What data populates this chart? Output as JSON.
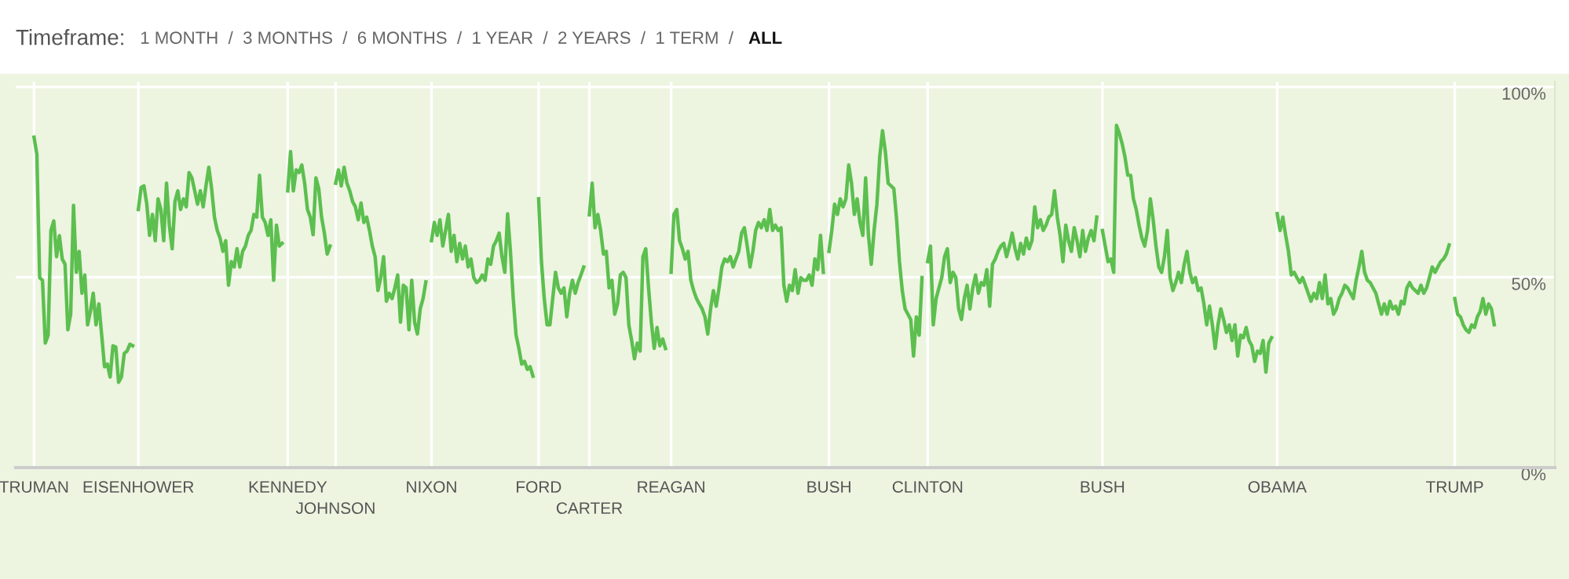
{
  "chart_data": {
    "type": "line",
    "annotations": [
      "Timeframe:",
      "1 MONTH  /  3 MONTHS  /  6 MONTHS  /  1 YEAR  /  2 YEARS  /  1 TERM  /",
      "ALL"
    ],
    "ylim": [
      0,
      101.4
    ],
    "yticks": [
      {
        "value": 0,
        "label": "0%"
      },
      {
        "value": 50,
        "label": "50%"
      },
      {
        "value": 100,
        "label": "100%"
      }
    ],
    "grid": true,
    "marker": "none",
    "line_style": "solid",
    "categories": [
      null,
      null,
      null,
      null,
      null,
      null,
      "TRUMAN",
      null,
      null,
      null,
      null,
      null,
      null,
      null,
      null,
      null,
      null,
      null,
      null,
      null,
      null,
      null,
      null,
      null,
      null,
      null,
      null,
      null,
      null,
      null,
      null,
      null,
      null,
      null,
      null,
      null,
      null,
      null,
      null,
      null,
      null,
      null,
      null,
      "EISENHOWER",
      null,
      null,
      null,
      null,
      null,
      null,
      null,
      null,
      null,
      null,
      null,
      null,
      null,
      null,
      null,
      null,
      null,
      null,
      null,
      null,
      null,
      null,
      null,
      null,
      null,
      null,
      null,
      null,
      null,
      null,
      null,
      null,
      null,
      null,
      null,
      null,
      null,
      null,
      null,
      null,
      null,
      null,
      null,
      null,
      null,
      null,
      null,
      null,
      null,
      null,
      null,
      null,
      "KENNEDY",
      null,
      null,
      null,
      null,
      null,
      null,
      null,
      null,
      null,
      null,
      null,
      null,
      null,
      null,
      null,
      null,
      "JOHNSON",
      null,
      null,
      null,
      null,
      null,
      null,
      null,
      null,
      null,
      null,
      null,
      null,
      null,
      null,
      null,
      null,
      null,
      null,
      null,
      null,
      null,
      null,
      null,
      null,
      null,
      null,
      null,
      null,
      null,
      null,
      null,
      null,
      null,
      "NIXON",
      null,
      null,
      null,
      null,
      null,
      null,
      null,
      null,
      null,
      null,
      null,
      null,
      null,
      null,
      null,
      null,
      null,
      null,
      null,
      null,
      null,
      null,
      null,
      null,
      null,
      null,
      null,
      null,
      null,
      null,
      null,
      null,
      null,
      null,
      null,
      null,
      null,
      "FORD",
      null,
      null,
      null,
      null,
      null,
      null,
      null,
      null,
      null,
      null,
      null,
      null,
      null,
      null,
      null,
      null,
      null,
      "CARTER",
      null,
      null,
      null,
      null,
      null,
      null,
      null,
      null,
      null,
      null,
      null,
      null,
      null,
      null,
      null,
      null,
      null,
      null,
      null,
      null,
      null,
      null,
      null,
      null,
      null,
      null,
      null,
      null,
      "REAGAN",
      null,
      null,
      null,
      null,
      null,
      null,
      null,
      null,
      null,
      null,
      null,
      null,
      null,
      null,
      null,
      null,
      null,
      null,
      null,
      null,
      null,
      null,
      null,
      null,
      null,
      null,
      null,
      null,
      null,
      null,
      null,
      null,
      null,
      null,
      null,
      null,
      null,
      null,
      null,
      null,
      null,
      null,
      null,
      null,
      null,
      null,
      null,
      null,
      null,
      null,
      null,
      null,
      null,
      null,
      null,
      "BUSH",
      null,
      null,
      null,
      null,
      null,
      null,
      null,
      null,
      null,
      null,
      null,
      null,
      null,
      null,
      null,
      null,
      null,
      null,
      null,
      null,
      null,
      null,
      null,
      null,
      null,
      null,
      null,
      null,
      null,
      null,
      null,
      null,
      null,
      null,
      "CLINTON",
      null,
      null,
      null,
      null,
      null,
      null,
      null,
      null,
      null,
      null,
      null,
      null,
      null,
      null,
      null,
      null,
      null,
      null,
      null,
      null,
      null,
      null,
      null,
      null,
      null,
      null,
      null,
      null,
      null,
      null,
      null,
      null,
      null,
      null,
      null,
      null,
      null,
      null,
      null,
      null,
      null,
      null,
      null,
      null,
      null,
      null,
      null,
      null,
      null,
      null,
      null,
      null,
      null,
      null,
      null,
      null,
      null,
      null,
      null,
      null,
      null,
      "BUSH",
      null,
      null,
      null,
      null,
      null,
      null,
      null,
      null,
      null,
      null,
      null,
      null,
      null,
      null,
      null,
      null,
      null,
      null,
      null,
      null,
      null,
      null,
      null,
      null,
      null,
      null,
      null,
      null,
      null,
      null,
      null,
      null,
      null,
      null,
      null,
      null,
      null,
      null,
      null,
      null,
      null,
      null,
      null,
      null,
      null,
      null,
      null,
      null,
      null,
      null,
      null,
      null,
      null,
      null,
      null,
      null,
      null,
      null,
      null,
      null,
      null,
      "OBAMA",
      null,
      null,
      null,
      null,
      null,
      null,
      null,
      null,
      null,
      null,
      null,
      null,
      null,
      null,
      null,
      null,
      null,
      null,
      null,
      null,
      null,
      null,
      null,
      null,
      null,
      null,
      null,
      null,
      null,
      null,
      null,
      null,
      null,
      null,
      null,
      null,
      null,
      null,
      null,
      null,
      null,
      null,
      null,
      null,
      null,
      null,
      null,
      null,
      null,
      null,
      null,
      null,
      null,
      null,
      null,
      null,
      null,
      null,
      null,
      null,
      null,
      null,
      "TRUMP",
      null,
      null,
      null,
      null,
      null,
      null,
      null,
      null,
      null,
      null,
      null,
      null,
      null,
      null,
      null,
      null,
      null,
      null,
      null,
      null,
      null,
      null,
      null,
      null,
      null,
      null,
      null,
      null,
      null,
      null,
      null,
      null,
      null,
      null,
      null
    ],
    "series": [
      {
        "color": "#5cbf4f",
        "values": [
          null,
          null,
          null,
          null,
          null,
          null,
          86.8,
          82.3,
          49.9,
          49.2,
          32.7,
          34.8,
          62.3,
          64.8,
          55.4,
          60.9,
          54.8,
          53.4,
          36.2,
          40.3,
          68.9,
          51.3,
          56.8,
          45.8,
          50.6,
          37.5,
          41.0,
          45.8,
          37.5,
          43.0,
          34.8,
          26.5,
          27.2,
          23.8,
          32.0,
          31.7,
          22.4,
          23.8,
          30.0,
          30.6,
          32.4,
          32.0,
          null,
          67.8,
          73.6,
          74.0,
          69.2,
          61.0,
          66.5,
          59.6,
          70.6,
          67.8,
          59.6,
          74.7,
          63.7,
          57.5,
          69.9,
          72.7,
          67.8,
          70.6,
          68.5,
          77.5,
          76.1,
          72.7,
          69.2,
          72.7,
          68.5,
          74.0,
          78.9,
          73.3,
          65.8,
          62.3,
          60.3,
          56.8,
          59.6,
          47.9,
          54.1,
          52.7,
          57.5,
          52.7,
          56.8,
          58.2,
          61.0,
          62.3,
          66.5,
          65.8,
          76.8,
          65.8,
          64.4,
          61.0,
          65.1,
          49.2,
          63.7,
          58.2,
          58.9,
          null,
          72.7,
          83.0,
          72.7,
          78.2,
          77.5,
          79.5,
          74.7,
          67.8,
          65.8,
          61.2,
          76.1,
          73.3,
          65.8,
          61.6,
          56.1,
          58.2,
          null,
          74.7,
          78.2,
          74.0,
          78.9,
          74.7,
          72.7,
          69.9,
          68.5,
          65.1,
          69.5,
          64.4,
          65.8,
          62.3,
          58.2,
          55.4,
          46.5,
          49.9,
          55.4,
          43.7,
          45.8,
          44.4,
          47.2,
          50.6,
          38.2,
          47.9,
          47.2,
          36.2,
          49.2,
          38.2,
          35.1,
          41.7,
          44.4,
          48.8,
          null,
          59.6,
          64.4,
          61.0,
          65.1,
          58.2,
          62.3,
          66.5,
          56.8,
          61.0,
          54.1,
          58.9,
          54.8,
          58.2,
          52.7,
          54.8,
          49.9,
          48.6,
          49.2,
          50.6,
          49.2,
          54.8,
          53.4,
          58.2,
          59.6,
          61.6,
          55.4,
          51.3,
          66.7,
          56.8,
          44.4,
          34.8,
          31.3,
          27.2,
          27.9,
          25.8,
          26.5,
          24.0,
          null,
          70.6,
          54.1,
          44.4,
          37.5,
          37.5,
          44.4,
          51.3,
          47.2,
          45.8,
          47.2,
          39.6,
          45.8,
          49.2,
          45.8,
          48.6,
          50.6,
          52.7,
          null,
          66.4,
          74.7,
          63.0,
          66.5,
          62.3,
          56.1,
          56.8,
          47.2,
          49.2,
          40.3,
          43.0,
          50.6,
          51.3,
          49.9,
          37.5,
          33.4,
          28.6,
          32.7,
          30.6,
          55.4,
          57.5,
          47.2,
          38.2,
          31.3,
          36.8,
          32.0,
          33.8,
          31.3,
          null,
          51.3,
          66.5,
          67.8,
          59.6,
          57.5,
          54.8,
          56.8,
          49.2,
          46.5,
          44.4,
          43.0,
          41.7,
          39.6,
          35.1,
          41.7,
          46.5,
          42.4,
          47.2,
          52.7,
          54.8,
          54.1,
          55.4,
          52.7,
          54.8,
          56.8,
          61.6,
          63.0,
          58.2,
          52.7,
          56.8,
          62.3,
          64.4,
          63.0,
          65.1,
          62.3,
          67.8,
          62.3,
          63.7,
          62.3,
          63.0,
          47.9,
          43.7,
          47.9,
          46.5,
          52.0,
          45.8,
          49.9,
          49.2,
          49.2,
          50.6,
          47.9,
          54.8,
          52.0,
          61.0,
          51.3,
          null,
          56.8,
          62.3,
          69.2,
          66.5,
          70.6,
          68.5,
          70.6,
          79.5,
          74.7,
          66.5,
          70.6,
          64.4,
          61.0,
          76.1,
          61.0,
          53.4,
          62.3,
          69.2,
          81.6,
          88.5,
          83.0,
          74.7,
          74.0,
          73.3,
          65.1,
          54.1,
          46.5,
          41.7,
          40.3,
          38.9,
          29.3,
          39.6,
          34.8,
          49.9,
          null,
          54.1,
          58.2,
          37.5,
          44.4,
          47.2,
          49.9,
          55.4,
          57.5,
          48.6,
          51.3,
          49.9,
          41.7,
          38.9,
          44.4,
          47.9,
          41.7,
          47.2,
          50.6,
          45.8,
          48.6,
          47.9,
          52.0,
          42.4,
          53.4,
          54.8,
          56.8,
          58.2,
          58.9,
          55.4,
          58.2,
          61.6,
          57.5,
          54.8,
          58.9,
          56.1,
          60.3,
          57.5,
          59.6,
          68.5,
          63.0,
          65.1,
          62.3,
          63.7,
          65.8,
          66.5,
          72.7,
          65.8,
          61.0,
          54.1,
          63.7,
          59.6,
          56.8,
          63.0,
          59.6,
          55.4,
          62.3,
          56.8,
          60.3,
          62.3,
          59.6,
          65.8,
          null,
          62.3,
          58.2,
          54.1,
          54.8,
          51.3,
          89.9,
          87.8,
          85.1,
          81.6,
          76.8,
          76.8,
          70.6,
          67.8,
          63.7,
          60.3,
          58.2,
          62.3,
          70.6,
          65.1,
          58.2,
          52.7,
          51.3,
          55.4,
          62.3,
          49.9,
          46.5,
          48.6,
          51.3,
          48.6,
          53.4,
          56.8,
          51.3,
          48.6,
          49.9,
          46.5,
          47.2,
          43.0,
          37.5,
          42.4,
          37.5,
          31.3,
          37.5,
          41.7,
          38.9,
          35.5,
          37.5,
          33.4,
          37.5,
          29.3,
          34.8,
          34.1,
          36.8,
          33.4,
          32.0,
          27.9,
          30.6,
          30.0,
          33.4,
          25.1,
          32.7,
          34.1,
          null,
          66.7,
          62.3,
          65.8,
          61.0,
          56.8,
          50.6,
          51.3,
          49.9,
          48.6,
          49.9,
          47.9,
          45.8,
          43.7,
          45.8,
          44.4,
          48.6,
          44.4,
          50.6,
          43.0,
          44.4,
          40.3,
          41.7,
          44.4,
          45.8,
          47.9,
          47.2,
          45.8,
          44.4,
          49.2,
          52.7,
          56.8,
          51.3,
          49.2,
          48.6,
          47.2,
          45.8,
          43.0,
          40.3,
          43.0,
          40.3,
          43.7,
          41.7,
          42.4,
          40.3,
          43.7,
          43.0,
          47.2,
          48.6,
          47.2,
          46.5,
          45.8,
          47.9,
          45.8,
          47.2,
          49.9,
          52.7,
          51.3,
          52.7,
          54.1,
          54.8,
          56.1,
          58.5,
          null,
          44.4,
          40.3,
          39.6,
          37.5,
          36.2,
          35.5,
          37.5,
          36.8,
          39.6,
          41.0,
          44.4,
          40.3,
          43.0,
          41.7,
          37.5,
          null,
          null,
          null,
          null,
          null,
          null,
          null,
          null,
          null,
          null,
          null,
          null,
          null,
          null,
          null,
          null,
          null,
          null,
          null,
          null,
          null
        ]
      }
    ]
  }
}
